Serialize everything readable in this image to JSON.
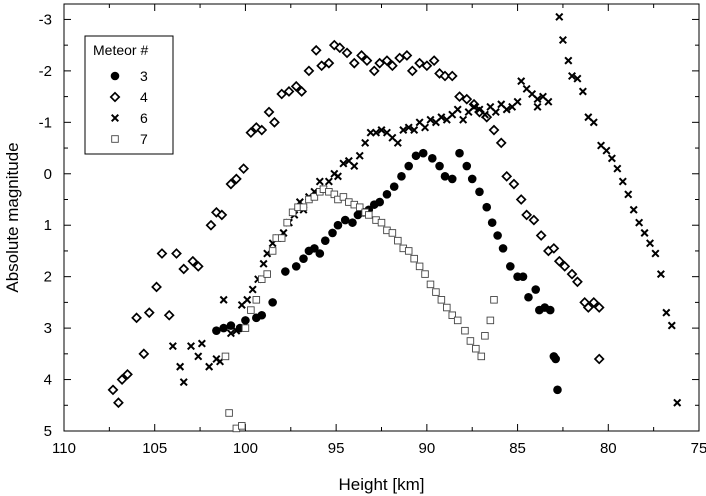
{
  "chart_data": {
    "type": "scatter",
    "title": "",
    "xlabel": "Height [km]",
    "ylabel": "Absolute magnitude",
    "xlim": [
      110,
      75
    ],
    "ylim": [
      5,
      -3.3
    ],
    "x_ticks": [
      "110",
      "105",
      "100",
      "95",
      "90",
      "85",
      "80",
      "75"
    ],
    "y_ticks": [
      "-3",
      "-2",
      "-1",
      "0",
      "1",
      "2",
      "3",
      "4",
      "5"
    ],
    "legend_title": "Meteor #",
    "legend_position": "top-left",
    "series": [
      {
        "name": "3",
        "marker": "filled-circle",
        "points": [
          [
            101.6,
            3.05
          ],
          [
            101.2,
            3.0
          ],
          [
            100.8,
            2.95
          ],
          [
            100.3,
            3.0
          ],
          [
            100.0,
            2.85
          ],
          [
            99.4,
            2.8
          ],
          [
            99.1,
            2.75
          ],
          [
            98.5,
            2.5
          ],
          [
            97.8,
            1.9
          ],
          [
            97.2,
            1.8
          ],
          [
            96.8,
            1.65
          ],
          [
            96.5,
            1.5
          ],
          [
            96.2,
            1.45
          ],
          [
            95.9,
            1.55
          ],
          [
            95.6,
            1.3
          ],
          [
            95.2,
            1.15
          ],
          [
            94.9,
            1.0
          ],
          [
            94.5,
            0.9
          ],
          [
            94.1,
            0.95
          ],
          [
            93.8,
            0.8
          ],
          [
            93.5,
            0.75
          ],
          [
            93.2,
            0.7
          ],
          [
            92.9,
            0.6
          ],
          [
            92.6,
            0.55
          ],
          [
            92.2,
            0.4
          ],
          [
            91.8,
            0.25
          ],
          [
            91.4,
            0.05
          ],
          [
            91.0,
            -0.15
          ],
          [
            90.6,
            -0.35
          ],
          [
            90.2,
            -0.4
          ],
          [
            89.7,
            -0.3
          ],
          [
            89.3,
            -0.15
          ],
          [
            89.0,
            0.05
          ],
          [
            88.6,
            0.1
          ],
          [
            88.2,
            -0.4
          ],
          [
            87.8,
            -0.15
          ],
          [
            87.5,
            0.1
          ],
          [
            87.1,
            0.35
          ],
          [
            86.7,
            0.65
          ],
          [
            86.4,
            0.95
          ],
          [
            86.1,
            1.2
          ],
          [
            85.8,
            1.45
          ],
          [
            85.4,
            1.8
          ],
          [
            85.0,
            2.0
          ],
          [
            84.7,
            2.0
          ],
          [
            84.4,
            2.4
          ],
          [
            84.0,
            2.25
          ],
          [
            83.8,
            2.65
          ],
          [
            83.5,
            2.6
          ],
          [
            83.2,
            2.65
          ],
          [
            83.0,
            3.55
          ],
          [
            82.9,
            3.6
          ],
          [
            82.8,
            4.2
          ]
        ]
      },
      {
        "name": "4",
        "marker": "open-diamond",
        "points": [
          [
            107.3,
            4.2
          ],
          [
            107.0,
            4.45
          ],
          [
            106.8,
            4.0
          ],
          [
            106.5,
            3.9
          ],
          [
            106.0,
            2.8
          ],
          [
            105.6,
            3.5
          ],
          [
            105.3,
            2.7
          ],
          [
            104.9,
            2.2
          ],
          [
            104.6,
            1.55
          ],
          [
            104.2,
            2.75
          ],
          [
            103.8,
            1.55
          ],
          [
            103.4,
            1.85
          ],
          [
            102.9,
            1.7
          ],
          [
            102.6,
            1.8
          ],
          [
            101.9,
            1.0
          ],
          [
            101.6,
            0.75
          ],
          [
            101.3,
            0.8
          ],
          [
            100.8,
            0.2
          ],
          [
            100.5,
            0.1
          ],
          [
            100.1,
            -0.1
          ],
          [
            99.7,
            -0.8
          ],
          [
            99.4,
            -0.9
          ],
          [
            99.1,
            -0.85
          ],
          [
            98.7,
            -1.2
          ],
          [
            98.4,
            -1.0
          ],
          [
            98.0,
            -1.55
          ],
          [
            97.6,
            -1.6
          ],
          [
            97.2,
            -1.7
          ],
          [
            96.9,
            -1.6
          ],
          [
            96.5,
            -2.0
          ],
          [
            96.1,
            -2.4
          ],
          [
            95.8,
            -2.1
          ],
          [
            95.4,
            -2.15
          ],
          [
            95.1,
            -2.5
          ],
          [
            94.8,
            -2.45
          ],
          [
            94.4,
            -2.35
          ],
          [
            94.0,
            -2.15
          ],
          [
            93.6,
            -2.3
          ],
          [
            93.3,
            -2.2
          ],
          [
            92.9,
            -2.0
          ],
          [
            92.6,
            -2.15
          ],
          [
            92.2,
            -2.2
          ],
          [
            91.9,
            -2.1
          ],
          [
            91.5,
            -2.25
          ],
          [
            91.1,
            -2.3
          ],
          [
            90.8,
            -2.0
          ],
          [
            90.4,
            -2.15
          ],
          [
            90.0,
            -2.1
          ],
          [
            89.6,
            -2.2
          ],
          [
            89.3,
            -1.95
          ],
          [
            89.0,
            -1.9
          ],
          [
            88.6,
            -1.9
          ],
          [
            88.2,
            -1.5
          ],
          [
            87.8,
            -1.45
          ],
          [
            87.4,
            -1.35
          ],
          [
            87.1,
            -1.2
          ],
          [
            86.7,
            -1.1
          ],
          [
            86.3,
            -0.85
          ],
          [
            85.9,
            -0.6
          ],
          [
            85.6,
            0.05
          ],
          [
            85.2,
            0.2
          ],
          [
            84.8,
            0.5
          ],
          [
            84.5,
            0.8
          ],
          [
            84.1,
            0.9
          ],
          [
            83.7,
            1.2
          ],
          [
            83.3,
            1.5
          ],
          [
            83.0,
            1.45
          ],
          [
            82.7,
            1.7
          ],
          [
            82.4,
            1.8
          ],
          [
            82.0,
            1.95
          ],
          [
            81.7,
            2.1
          ],
          [
            81.3,
            2.5
          ],
          [
            81.1,
            2.6
          ],
          [
            80.8,
            2.5
          ],
          [
            80.5,
            2.6
          ],
          [
            80.5,
            3.6
          ]
        ]
      },
      {
        "name": "6",
        "marker": "x-cross",
        "points": [
          [
            104.0,
            3.35
          ],
          [
            103.6,
            3.75
          ],
          [
            103.4,
            4.05
          ],
          [
            103.0,
            3.35
          ],
          [
            102.6,
            3.55
          ],
          [
            102.4,
            3.3
          ],
          [
            102.0,
            3.75
          ],
          [
            101.6,
            3.6
          ],
          [
            101.4,
            3.65
          ],
          [
            101.2,
            2.45
          ],
          [
            100.8,
            3.1
          ],
          [
            100.5,
            3.05
          ],
          [
            100.2,
            2.55
          ],
          [
            99.9,
            2.45
          ],
          [
            99.6,
            2.25
          ],
          [
            99.3,
            2.05
          ],
          [
            99.0,
            1.75
          ],
          [
            98.8,
            1.55
          ],
          [
            98.5,
            1.35
          ],
          [
            98.2,
            1.25
          ],
          [
            97.9,
            1.15
          ],
          [
            97.6,
            0.95
          ],
          [
            97.3,
            0.8
          ],
          [
            97.0,
            0.55
          ],
          [
            96.8,
            0.7
          ],
          [
            96.5,
            0.45
          ],
          [
            96.2,
            0.35
          ],
          [
            95.9,
            0.15
          ],
          [
            95.7,
            0.3
          ],
          [
            95.4,
            0.15
          ],
          [
            95.1,
            0.0
          ],
          [
            94.9,
            0.05
          ],
          [
            94.6,
            -0.2
          ],
          [
            94.3,
            -0.25
          ],
          [
            94.0,
            -0.15
          ],
          [
            93.7,
            -0.35
          ],
          [
            93.4,
            -0.6
          ],
          [
            93.1,
            -0.8
          ],
          [
            92.8,
            -0.8
          ],
          [
            92.5,
            -0.85
          ],
          [
            92.2,
            -0.8
          ],
          [
            91.9,
            -0.7
          ],
          [
            91.6,
            -0.6
          ],
          [
            91.3,
            -0.85
          ],
          [
            91.0,
            -0.9
          ],
          [
            90.7,
            -0.85
          ],
          [
            90.4,
            -1.0
          ],
          [
            90.1,
            -0.9
          ],
          [
            89.8,
            -1.05
          ],
          [
            89.5,
            -1.0
          ],
          [
            89.2,
            -1.1
          ],
          [
            88.9,
            -1.05
          ],
          [
            88.6,
            -1.15
          ],
          [
            88.3,
            -1.25
          ],
          [
            88.0,
            -1.05
          ],
          [
            87.7,
            -1.2
          ],
          [
            87.4,
            -1.3
          ],
          [
            87.1,
            -1.25
          ],
          [
            86.8,
            -1.15
          ],
          [
            86.5,
            -1.3
          ],
          [
            86.2,
            -1.2
          ],
          [
            85.9,
            -1.35
          ],
          [
            85.6,
            -1.25
          ],
          [
            85.3,
            -1.3
          ],
          [
            85.0,
            -1.4
          ],
          [
            84.8,
            -1.8
          ],
          [
            84.5,
            -1.65
          ],
          [
            84.2,
            -1.55
          ],
          [
            83.9,
            -1.45
          ],
          [
            83.6,
            -1.5
          ],
          [
            83.3,
            -1.4
          ],
          [
            82.7,
            -3.05
          ],
          [
            82.5,
            -2.6
          ],
          [
            82.2,
            -2.2
          ],
          [
            82.0,
            -1.9
          ],
          [
            81.7,
            -1.85
          ],
          [
            81.4,
            -1.6
          ],
          [
            81.1,
            -1.1
          ],
          [
            80.8,
            -1.0
          ],
          [
            80.4,
            -0.55
          ],
          [
            80.1,
            -0.45
          ],
          [
            79.8,
            -0.3
          ],
          [
            79.5,
            -0.1
          ],
          [
            79.2,
            0.15
          ],
          [
            78.9,
            0.4
          ],
          [
            78.6,
            0.7
          ],
          [
            78.3,
            0.95
          ],
          [
            78.0,
            1.15
          ],
          [
            77.7,
            1.35
          ],
          [
            77.4,
            1.55
          ],
          [
            77.1,
            1.95
          ],
          [
            76.8,
            2.7
          ],
          [
            76.5,
            2.95
          ],
          [
            76.2,
            4.45
          ],
          [
            83.9,
            -1.3
          ]
        ]
      },
      {
        "name": "7",
        "marker": "open-square",
        "points": [
          [
            100.9,
            4.65
          ],
          [
            100.5,
            4.95
          ],
          [
            100.2,
            4.9
          ],
          [
            101.1,
            3.55
          ],
          [
            100.0,
            3.0
          ],
          [
            99.7,
            2.65
          ],
          [
            99.4,
            2.45
          ],
          [
            99.1,
            2.05
          ],
          [
            98.8,
            1.95
          ],
          [
            98.5,
            1.5
          ],
          [
            98.3,
            1.25
          ],
          [
            98.0,
            1.25
          ],
          [
            97.7,
            0.95
          ],
          [
            97.4,
            0.75
          ],
          [
            97.1,
            0.65
          ],
          [
            96.8,
            0.65
          ],
          [
            96.5,
            0.5
          ],
          [
            96.2,
            0.45
          ],
          [
            95.9,
            0.35
          ],
          [
            95.7,
            0.3
          ],
          [
            95.4,
            0.35
          ],
          [
            95.1,
            0.4
          ],
          [
            94.9,
            0.5
          ],
          [
            94.6,
            0.45
          ],
          [
            94.3,
            0.55
          ],
          [
            94.0,
            0.6
          ],
          [
            93.7,
            0.65
          ],
          [
            93.4,
            0.75
          ],
          [
            93.2,
            0.8
          ],
          [
            92.8,
            0.9
          ],
          [
            92.5,
            0.95
          ],
          [
            92.2,
            1.1
          ],
          [
            91.9,
            1.15
          ],
          [
            91.6,
            1.3
          ],
          [
            91.3,
            1.45
          ],
          [
            91.0,
            1.5
          ],
          [
            90.7,
            1.65
          ],
          [
            90.4,
            1.8
          ],
          [
            90.1,
            1.95
          ],
          [
            89.8,
            2.15
          ],
          [
            89.5,
            2.3
          ],
          [
            89.2,
            2.45
          ],
          [
            88.9,
            2.6
          ],
          [
            88.6,
            2.75
          ],
          [
            88.3,
            2.85
          ],
          [
            87.9,
            3.05
          ],
          [
            87.6,
            3.25
          ],
          [
            87.3,
            3.4
          ],
          [
            87.0,
            3.55
          ],
          [
            86.8,
            3.15
          ],
          [
            86.5,
            2.85
          ],
          [
            86.3,
            2.45
          ]
        ]
      }
    ]
  }
}
